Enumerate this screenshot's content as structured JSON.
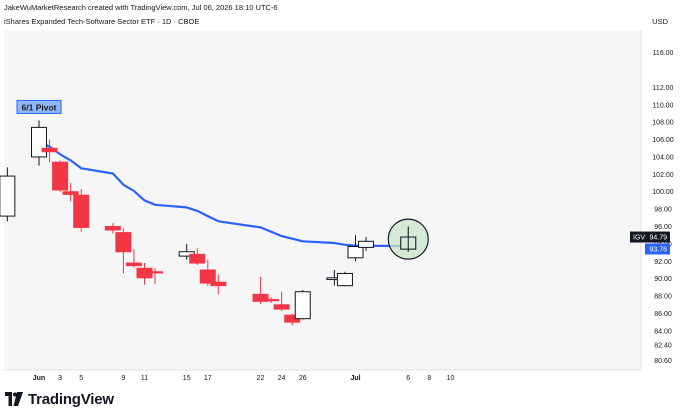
{
  "header": {
    "attribution": "JakeWuMarketResearch created with TradingView.com, Jul 06, 2026 18:10 UTC-6",
    "symbol_line": "iShares Expanded Tech-Software Sector ETF · 1D · CBOE",
    "currency": "USD"
  },
  "annotations": {
    "pivot_label": "6/1 Pivot"
  },
  "price_badges": {
    "symbol": "IGV",
    "last_price": "94.79",
    "ma_value": "93.76",
    "last_color": "#131722",
    "ma_color": "#2962ff"
  },
  "footer": {
    "brand": "TradingView"
  },
  "colors": {
    "up_body": "#ffffff",
    "up_border": "#131722",
    "down_body": "#f23645",
    "ma_line": "#2962ff",
    "plot_bg": "#f6f6f6",
    "highlight_circle": "#c8e6c9"
  },
  "chart_data": {
    "type": "candlestick",
    "title": "iShares Expanded Tech-Software Sector ETF · 1D · CBOE",
    "interval": "1D",
    "currency": "USD",
    "ylim": [
      79.5,
      118.6
    ],
    "y_ticks": [
      "80.60",
      "82.40",
      "84.00",
      "86.00",
      "88.00",
      "90.00",
      "92.00",
      "94.00",
      "96.00",
      "98.00",
      "100.00",
      "102.00",
      "104.00",
      "106.00",
      "108.00",
      "110.00",
      "112.00",
      "116.00"
    ],
    "x_ticks": [
      {
        "label": "Jun",
        "date": "2026-06-01"
      },
      {
        "label": "3",
        "date": "2026-06-03"
      },
      {
        "label": "5",
        "date": "2026-06-05"
      },
      {
        "label": "9",
        "date": "2026-06-09"
      },
      {
        "label": "11",
        "date": "2026-06-11"
      },
      {
        "label": "15",
        "date": "2026-06-15"
      },
      {
        "label": "17",
        "date": "2026-06-17"
      },
      {
        "label": "22",
        "date": "2026-06-22"
      },
      {
        "label": "24",
        "date": "2026-06-24"
      },
      {
        "label": "26",
        "date": "2026-06-26"
      },
      {
        "label": "Jul",
        "date": "2026-07-01"
      },
      {
        "label": "6",
        "date": "2026-07-06"
      },
      {
        "label": "8",
        "date": "2026-07-08"
      },
      {
        "label": "10",
        "date": "2026-07-10"
      }
    ],
    "candles": [
      {
        "date": "2026-05-29",
        "open": 97.2,
        "high": 102.8,
        "low": 96.6,
        "close": 101.8
      },
      {
        "date": "2026-06-01",
        "open": 104.0,
        "high": 108.2,
        "low": 103.0,
        "close": 107.4
      },
      {
        "date": "2026-06-02",
        "open": 105.0,
        "high": 106.0,
        "low": 103.4,
        "close": 104.6
      },
      {
        "date": "2026-06-03",
        "open": 103.4,
        "high": 103.6,
        "low": 100.0,
        "close": 100.2
      },
      {
        "date": "2026-06-04",
        "open": 100.0,
        "high": 101.0,
        "low": 98.9,
        "close": 99.7
      },
      {
        "date": "2026-06-05",
        "open": 99.6,
        "high": 100.3,
        "low": 95.4,
        "close": 95.9
      },
      {
        "date": "2026-06-08",
        "open": 96.0,
        "high": 96.4,
        "low": 95.2,
        "close": 95.6
      },
      {
        "date": "2026-06-09",
        "open": 95.3,
        "high": 95.8,
        "low": 90.6,
        "close": 93.1
      },
      {
        "date": "2026-06-10",
        "open": 91.8,
        "high": 93.4,
        "low": 91.3,
        "close": 91.5
      },
      {
        "date": "2026-06-11",
        "open": 91.2,
        "high": 91.8,
        "low": 89.3,
        "close": 90.1
      },
      {
        "date": "2026-06-12",
        "open": 90.8,
        "high": 91.2,
        "low": 89.4,
        "close": 90.7
      },
      {
        "date": "2026-06-15",
        "open": 92.6,
        "high": 94.0,
        "low": 92.2,
        "close": 93.1
      },
      {
        "date": "2026-06-16",
        "open": 92.8,
        "high": 93.5,
        "low": 91.6,
        "close": 91.8
      },
      {
        "date": "2026-06-17",
        "open": 91.0,
        "high": 92.2,
        "low": 89.2,
        "close": 89.5
      },
      {
        "date": "2026-06-18",
        "open": 89.6,
        "high": 90.5,
        "low": 88.2,
        "close": 89.2
      },
      {
        "date": "2026-06-22",
        "open": 88.2,
        "high": 90.2,
        "low": 87.1,
        "close": 87.4
      },
      {
        "date": "2026-06-23",
        "open": 87.6,
        "high": 87.9,
        "low": 87.2,
        "close": 87.5
      },
      {
        "date": "2026-06-24",
        "open": 87.0,
        "high": 88.5,
        "low": 86.3,
        "close": 86.5
      },
      {
        "date": "2026-06-25",
        "open": 85.8,
        "high": 86.0,
        "low": 84.6,
        "close": 85.0
      },
      {
        "date": "2026-06-26",
        "open": 85.4,
        "high": 88.7,
        "low": 85.3,
        "close": 88.5
      },
      {
        "date": "2026-06-29",
        "open": 89.9,
        "high": 91.0,
        "low": 89.2,
        "close": 90.1
      },
      {
        "date": "2026-06-30",
        "open": 89.2,
        "high": 90.8,
        "low": 89.1,
        "close": 90.6
      },
      {
        "date": "2026-07-01",
        "open": 92.4,
        "high": 95.0,
        "low": 92.0,
        "close": 93.7
      },
      {
        "date": "2026-07-02",
        "open": 93.6,
        "high": 94.8,
        "low": 93.2,
        "close": 94.3
      },
      {
        "date": "2026-07-06",
        "open": 93.4,
        "high": 96.0,
        "low": 93.1,
        "close": 94.79
      }
    ],
    "series": [
      {
        "type": "line",
        "points": [
          {
            "date": "2026-06-01",
            "value": 105.7
          },
          {
            "date": "2026-06-02",
            "value": 105.2
          },
          {
            "date": "2026-06-03",
            "value": 104.3
          },
          {
            "date": "2026-06-04",
            "value": 103.6
          },
          {
            "date": "2026-06-05",
            "value": 102.7
          },
          {
            "date": "2026-06-08",
            "value": 102.1
          },
          {
            "date": "2026-06-09",
            "value": 100.8
          },
          {
            "date": "2026-06-10",
            "value": 100.1
          },
          {
            "date": "2026-06-11",
            "value": 99.0
          },
          {
            "date": "2026-06-12",
            "value": 98.5
          },
          {
            "date": "2026-06-15",
            "value": 98.2
          },
          {
            "date": "2026-06-16",
            "value": 97.8
          },
          {
            "date": "2026-06-17",
            "value": 97.2
          },
          {
            "date": "2026-06-18",
            "value": 96.6
          },
          {
            "date": "2026-06-22",
            "value": 95.9
          },
          {
            "date": "2026-06-23",
            "value": 95.4
          },
          {
            "date": "2026-06-24",
            "value": 94.9
          },
          {
            "date": "2026-06-25",
            "value": 94.6
          },
          {
            "date": "2026-06-26",
            "value": 94.3
          },
          {
            "date": "2026-06-29",
            "value": 94.1
          },
          {
            "date": "2026-06-30",
            "value": 93.9
          },
          {
            "date": "2026-07-01",
            "value": 93.8
          },
          {
            "date": "2026-07-02",
            "value": 93.78
          },
          {
            "date": "2026-07-06",
            "value": 93.76
          }
        ]
      }
    ],
    "pivot": {
      "label": "6/1 Pivot",
      "date": "2026-06-01"
    },
    "highlight": {
      "date": "2026-07-06"
    },
    "grid": false,
    "price_axis": "right"
  }
}
